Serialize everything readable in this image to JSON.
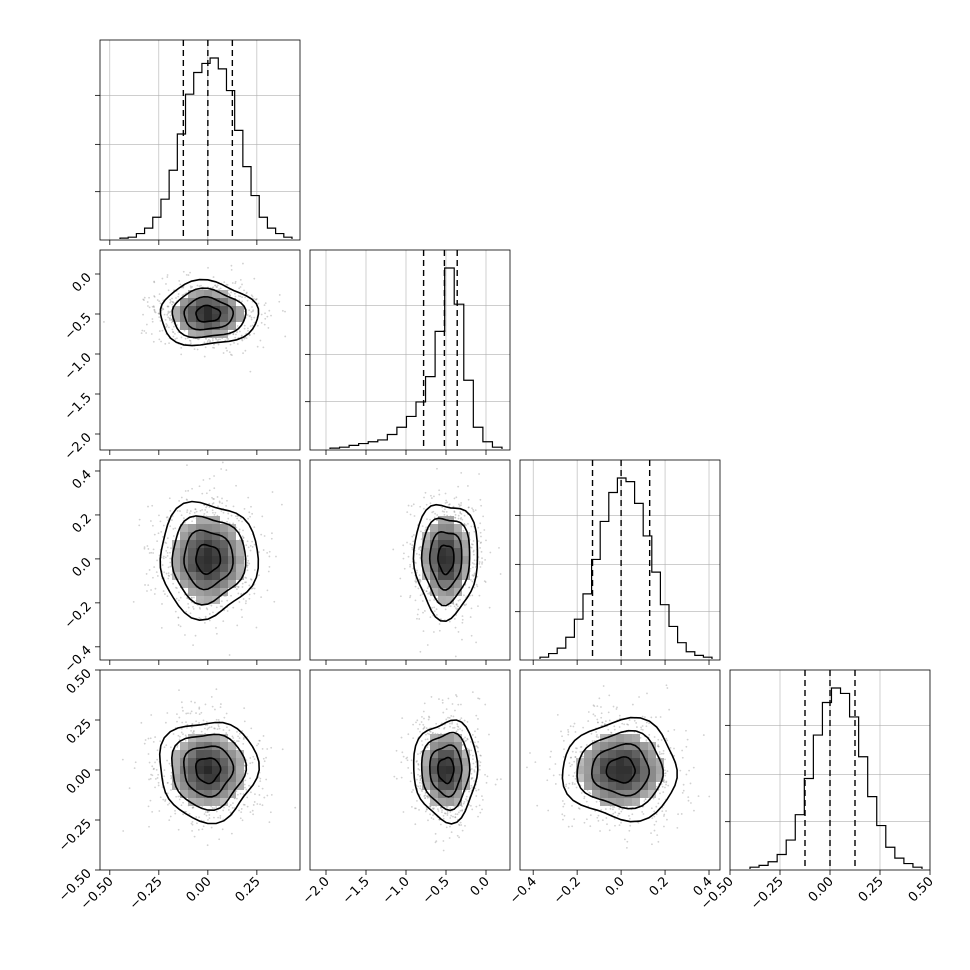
{
  "chart_data": {
    "type": "corner",
    "dimensions": [
      {
        "index": 0,
        "range": [
          -0.55,
          0.47
        ],
        "diag_ticks": [
          -0.5,
          -0.25,
          0.0,
          0.25
        ],
        "tick_labels": [
          "−0.50",
          "−0.25",
          "0.00",
          "0.25"
        ],
        "quantiles": [
          -0.125,
          0.0,
          0.125
        ],
        "histogram": [
          0.5,
          1,
          3,
          6,
          12,
          22,
          38,
          58,
          80,
          92,
          97,
          100,
          94,
          82,
          60,
          40,
          24,
          12,
          6,
          3,
          1
        ],
        "contour_center": [
          0.0,
          0.0
        ],
        "spread": 0.125
      },
      {
        "index": 1,
        "range": [
          -2.2,
          0.3
        ],
        "diag_ticks": [
          -2.0,
          -1.5,
          -1.0,
          -0.5,
          0.0
        ],
        "tick_labels": [
          "−2.0",
          "−1.5",
          "−1.0",
          "−0.5",
          "0.0"
        ],
        "left_ticks": [
          0.0,
          -0.5,
          -1.0,
          -1.5,
          -2.0
        ],
        "left_tick_labels": [
          "0.0",
          "−0.5",
          "−1.0",
          "−1.5",
          "−2.0"
        ],
        "quantiles": [
          -0.78,
          -0.52,
          -0.36
        ],
        "histogram": [
          0.5,
          1,
          2,
          3,
          4,
          5,
          8,
          12,
          18,
          26,
          40,
          65,
          100,
          80,
          38,
          12,
          4,
          1
        ],
        "contour_center": [
          0.0,
          -0.5
        ],
        "spread": 0.2
      },
      {
        "index": 2,
        "range": [
          -0.46,
          0.45
        ],
        "diag_ticks": [
          -0.4,
          -0.2,
          0.0,
          0.2,
          0.4
        ],
        "tick_labels": [
          "−0.4",
          "−0.2",
          "0.0",
          "0.2",
          "0.4"
        ],
        "left_ticks": [
          0.4,
          0.2,
          0.0,
          -0.2,
          -0.4
        ],
        "left_tick_labels": [
          "0.4",
          "0.2",
          "0.0",
          "−0.2",
          "−0.4"
        ],
        "quantiles": [
          -0.13,
          0.0,
          0.13
        ],
        "histogram": [
          1,
          3,
          6,
          12,
          22,
          36,
          55,
          76,
          92,
          100,
          98,
          86,
          68,
          48,
          30,
          18,
          9,
          4,
          2,
          1
        ],
        "contour_center": [
          0.0,
          0.0
        ],
        "spread": 0.13
      },
      {
        "index": 3,
        "range": [
          -0.5,
          0.5
        ],
        "diag_ticks": [
          -0.5,
          -0.25,
          0.0,
          0.25,
          0.5
        ],
        "tick_labels": [
          "−0.50",
          "−0.25",
          "0.00",
          "0.25",
          "0.50"
        ],
        "left_ticks": [
          0.5,
          0.25,
          0.0,
          -0.25,
          -0.5
        ],
        "left_tick_labels": [
          "0.50",
          "0.25",
          "0.00",
          "−0.25",
          "−0.50"
        ],
        "quantiles": [
          -0.125,
          0.0,
          0.125
        ],
        "histogram": [
          1,
          2,
          4,
          8,
          16,
          30,
          50,
          74,
          92,
          100,
          97,
          84,
          62,
          40,
          24,
          12,
          6,
          3,
          1
        ],
        "contour_center": [
          0.0,
          0.0
        ],
        "spread": 0.125
      }
    ],
    "contour_levels": [
      0.5,
      1.0,
      1.5,
      2.0
    ],
    "grid": true,
    "colors": {
      "line": "#000000",
      "grid": "#b0b0b0",
      "points": "#888888",
      "density_dark": "#111111"
    }
  }
}
